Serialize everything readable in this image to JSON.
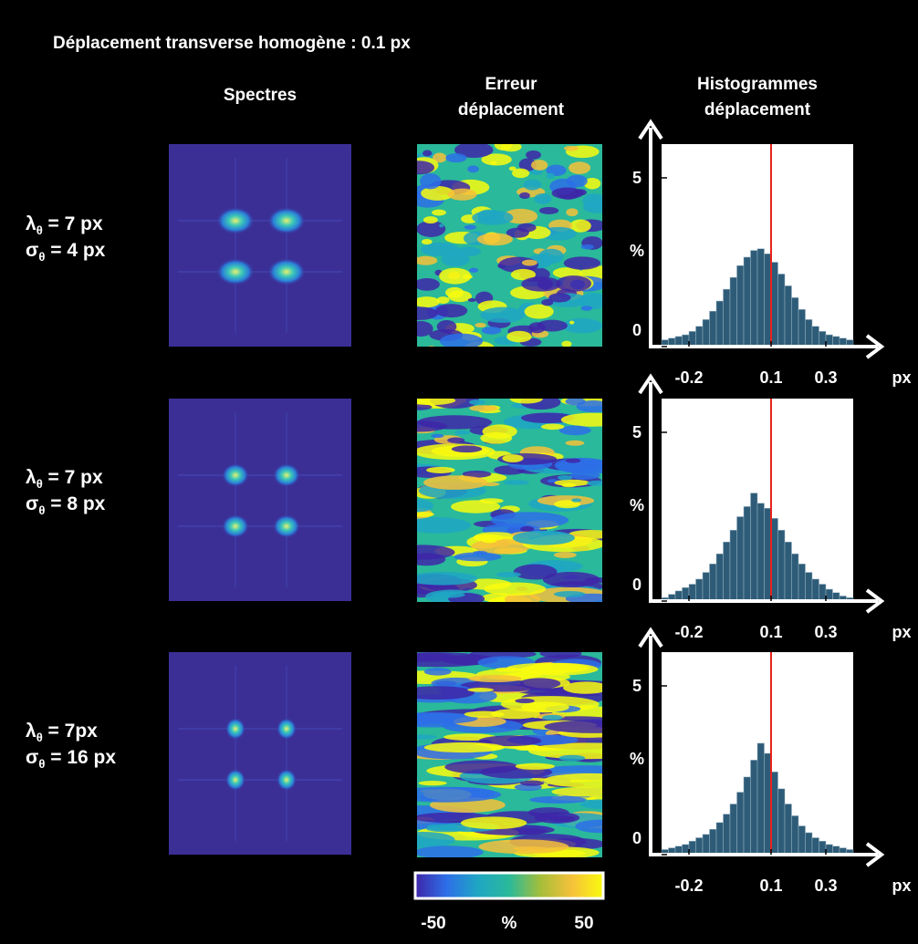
{
  "title": "Déplacement transverse homogène : 0.1 px",
  "columns": [
    [
      "Spectres"
    ],
    [
      "Erreur",
      "déplacement"
    ],
    [
      "Histogrammes",
      "déplacement"
    ]
  ],
  "rows": [
    [
      {
        "symbol": "λ",
        "sub": "θ",
        "text": " = 7 px"
      },
      {
        "symbol": "σ",
        "sub": "θ",
        "text": " = 4 px"
      }
    ],
    [
      {
        "symbol": "λ",
        "sub": "θ",
        "text": " = 7 px"
      },
      {
        "symbol": "σ",
        "sub": "θ",
        "text": " = 8 px"
      }
    ],
    [
      {
        "symbol": "λ",
        "sub": "θ",
        "text": " = 7px"
      },
      {
        "symbol": "σ",
        "sub": "θ",
        "text": " = 16 px"
      }
    ]
  ],
  "colorbar": {
    "ticks": [
      -50,
      50
    ],
    "label": "%",
    "colors": [
      "#3e26a8",
      "#2d6fe8",
      "#1fa6c4",
      "#2ab99a",
      "#a5be3a",
      "#f6c13a",
      "#f9fb0e"
    ]
  },
  "chart_data": [
    {
      "type": "histogram",
      "xlabel": "px",
      "ylabel": "%",
      "color": "#2e5c78",
      "xlim": [
        -0.3,
        0.4
      ],
      "ylim": [
        0,
        6
      ],
      "xticks": [
        -0.2,
        0.1,
        0.3
      ],
      "yticks": [
        0,
        5
      ],
      "bins": [
        -0.3,
        -0.275,
        -0.25,
        -0.225,
        -0.2,
        -0.175,
        -0.15,
        -0.125,
        -0.1,
        -0.075,
        -0.05,
        -0.025,
        0,
        0.025,
        0.05,
        0.075,
        0.1,
        0.125,
        0.15,
        0.175,
        0.2,
        0.225,
        0.25,
        0.275,
        0.3,
        0.325,
        0.35,
        0.375,
        0.4
      ],
      "values": [
        0.2,
        0.25,
        0.3,
        0.35,
        0.45,
        0.6,
        0.8,
        1.05,
        1.35,
        1.7,
        2.05,
        2.4,
        2.65,
        2.85,
        2.9,
        2.75,
        2.5,
        2.15,
        1.8,
        1.45,
        1.1,
        0.8,
        0.6,
        0.45,
        0.35,
        0.3,
        0.25,
        0.2
      ],
      "reference_line": {
        "x": 0.1,
        "color": "#e8231e"
      }
    },
    {
      "type": "histogram",
      "xlabel": "px",
      "ylabel": "%",
      "color": "#2e5c78",
      "xlim": [
        -0.3,
        0.4
      ],
      "ylim": [
        0,
        6
      ],
      "xticks": [
        -0.2,
        0.1,
        0.3
      ],
      "yticks": [
        0,
        5
      ],
      "bins": [
        -0.3,
        -0.275,
        -0.25,
        -0.225,
        -0.2,
        -0.175,
        -0.15,
        -0.125,
        -0.1,
        -0.075,
        -0.05,
        -0.025,
        0,
        0.025,
        0.05,
        0.075,
        0.1,
        0.125,
        0.15,
        0.175,
        0.2,
        0.225,
        0.25,
        0.275,
        0.3,
        0.325,
        0.35,
        0.375,
        0.4
      ],
      "values": [
        0.1,
        0.2,
        0.3,
        0.4,
        0.5,
        0.65,
        0.85,
        1.1,
        1.4,
        1.75,
        2.1,
        2.5,
        2.8,
        3.2,
        2.9,
        2.75,
        2.45,
        2.1,
        1.75,
        1.4,
        1.1,
        0.85,
        0.65,
        0.5,
        0.35,
        0.25,
        0.15,
        0.1
      ],
      "reference_line": {
        "x": 0.1,
        "color": "#e8231e"
      }
    },
    {
      "type": "histogram",
      "xlabel": "px",
      "ylabel": "%",
      "color": "#2e5c78",
      "xlim": [
        -0.3,
        0.4
      ],
      "ylim": [
        0,
        6
      ],
      "xticks": [
        -0.2,
        0.1,
        0.3
      ],
      "yticks": [
        0,
        5
      ],
      "bins": [
        -0.3,
        -0.275,
        -0.25,
        -0.225,
        -0.2,
        -0.175,
        -0.15,
        -0.125,
        -0.1,
        -0.075,
        -0.05,
        -0.025,
        0,
        0.025,
        0.05,
        0.075,
        0.1,
        0.125,
        0.15,
        0.175,
        0.2,
        0.225,
        0.25,
        0.275,
        0.3,
        0.325,
        0.35,
        0.375,
        0.4
      ],
      "values": [
        0.15,
        0.2,
        0.25,
        0.3,
        0.4,
        0.5,
        0.6,
        0.75,
        0.95,
        1.2,
        1.5,
        1.85,
        2.3,
        2.8,
        3.3,
        3.0,
        2.45,
        1.95,
        1.5,
        1.15,
        0.85,
        0.65,
        0.5,
        0.4,
        0.3,
        0.25,
        0.2,
        0.15
      ],
      "reference_line": {
        "x": 0.1,
        "color": "#e8231e"
      }
    }
  ]
}
